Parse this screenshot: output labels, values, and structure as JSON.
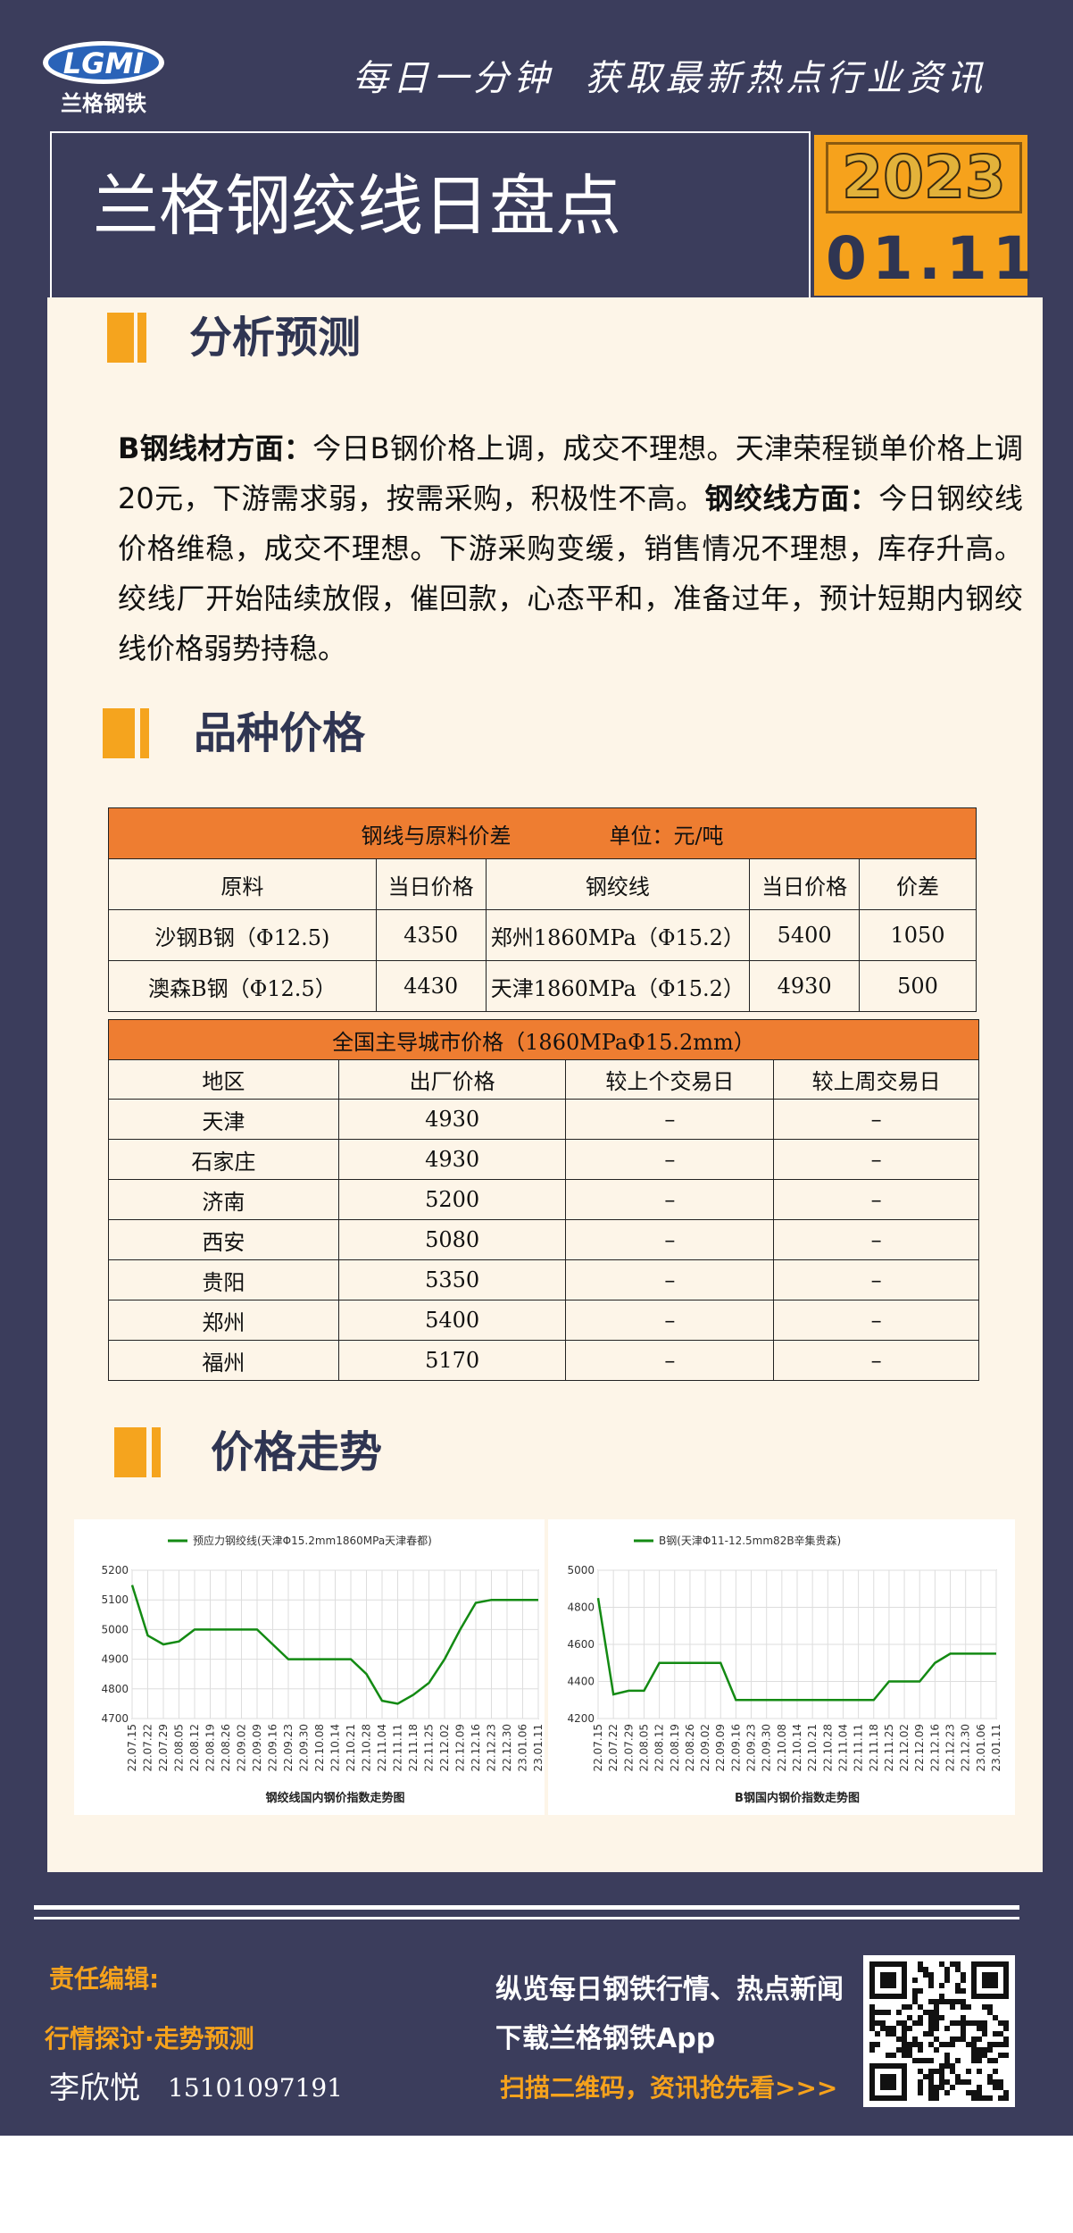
{
  "header": {
    "logo_text": "LGMI",
    "logo_subtitle": "兰格钢铁",
    "slogan": "每日一分钟  获取最新热点行业资讯",
    "title": "兰格钢绞线日盘点",
    "year": "2023",
    "date": "01.11"
  },
  "sections": [
    "分析预测",
    "品种价格",
    "价格走势"
  ],
  "analysis": {
    "segments": [
      {
        "text": "B钢线材方面：",
        "bold": true
      },
      {
        "text": "今日B钢价格上调，成交不理想。天津荣程锁单价格上调20元，下游需求弱，按需采购，积极性不高。",
        "bold": false
      },
      {
        "text": "钢绞线方面：",
        "bold": true
      },
      {
        "text": "今日钢绞线价格维稳，成交不理想。下游采购变缓，销售情况不理想，库存升高。绞线厂开始陆续放假，催回款，心态平和，准备过年，预计短期内钢绞线价格弱势持稳。",
        "bold": false
      }
    ]
  },
  "table1": {
    "title": "钢线与原料价差",
    "unit": "单位：元/吨",
    "columns": [
      "原料",
      "当日价格",
      "钢绞线",
      "当日价格",
      "价差"
    ],
    "rows": [
      [
        "沙钢B钢（Φ12.5)",
        4350,
        "郑州1860MPa（Φ15.2）",
        5400,
        1050
      ],
      [
        "澳森B钢（Φ12.5）",
        4430,
        "天津1860MPa（Φ15.2）",
        4930,
        500
      ]
    ]
  },
  "table2": {
    "title": "全国主导城市价格（1860MPaΦ15.2mm）",
    "columns": [
      "地区",
      "出厂价格",
      "较上个交易日",
      "较上周交易日"
    ],
    "rows": [
      [
        "天津",
        4930,
        "–",
        "–"
      ],
      [
        "石家庄",
        4930,
        "–",
        "–"
      ],
      [
        "济南",
        5200,
        "–",
        "–"
      ],
      [
        "西安",
        5080,
        "–",
        "–"
      ],
      [
        "贵阳",
        5350,
        "–",
        "–"
      ],
      [
        "郑州",
        5400,
        "–",
        "–"
      ],
      [
        "福州",
        5170,
        "–",
        "–"
      ]
    ]
  },
  "chart_data": [
    {
      "type": "line",
      "title": "钢绞线国内钢价指数走势图",
      "categories": [
        "22.07.15",
        "22.07.22",
        "22.07.29",
        "22.08.05",
        "22.08.12",
        "22.08.19",
        "22.08.26",
        "22.09.02",
        "22.09.09",
        "22.09.16",
        "22.09.23",
        "22.09.30",
        "22.10.08",
        "22.10.14",
        "22.10.21",
        "22.10.28",
        "22.11.04",
        "22.11.11",
        "22.11.18",
        "22.11.25",
        "22.12.02",
        "22.12.09",
        "22.12.16",
        "22.12.23",
        "22.12.30",
        "23.01.06",
        "23.01.11"
      ],
      "series": [
        {
          "name": "预应力钢绞线(天津Φ15.2mm1860MPa天津春都)",
          "color": "#138a13",
          "values": [
            5150,
            4980,
            4950,
            4960,
            5000,
            5000,
            5000,
            5000,
            5000,
            4950,
            4900,
            4900,
            4900,
            4900,
            4900,
            4850,
            4760,
            4750,
            4780,
            4820,
            4900,
            5000,
            5090,
            5100,
            5100,
            5100,
            5100
          ]
        }
      ],
      "ylim": [
        4700,
        5200
      ],
      "yticks": [
        4700,
        4800,
        4900,
        5000,
        5100,
        5200
      ],
      "grid": true
    },
    {
      "type": "line",
      "title": "B钢国内钢价指数走势图",
      "categories": [
        "22.07.15",
        "22.07.22",
        "22.07.29",
        "22.08.05",
        "22.08.12",
        "22.08.19",
        "22.08.26",
        "22.09.02",
        "22.09.09",
        "22.09.16",
        "22.09.23",
        "22.09.30",
        "22.10.08",
        "22.10.14",
        "22.10.21",
        "22.10.28",
        "22.11.04",
        "22.11.11",
        "22.11.18",
        "22.11.25",
        "22.12.02",
        "22.12.09",
        "22.12.16",
        "22.12.23",
        "22.12.30",
        "23.01.06",
        "23.01.11"
      ],
      "series": [
        {
          "name": "B钢(天津Φ11-12.5mm82B辛集贵森)",
          "color": "#138a13",
          "values": [
            4850,
            4330,
            4350,
            4350,
            4500,
            4500,
            4500,
            4500,
            4500,
            4300,
            4300,
            4300,
            4300,
            4300,
            4300,
            4300,
            4300,
            4300,
            4300,
            4400,
            4400,
            4400,
            4500,
            4550,
            4550,
            4550,
            4550
          ]
        }
      ],
      "ylim": [
        4200,
        5000
      ],
      "yticks": [
        4200,
        4400,
        4600,
        4800,
        5000
      ],
      "grid": true
    }
  ],
  "footer": {
    "editor_label": "责任编辑:",
    "editor_tagline": "行情探讨·走势预测",
    "editor_name": "李欣悦",
    "editor_phone": "15101097191",
    "promo": [
      "纵览每日钢铁行情、热点新闻",
      "下载兰格钢铁App",
      "扫描二维码，资讯抢先看>>>"
    ]
  }
}
